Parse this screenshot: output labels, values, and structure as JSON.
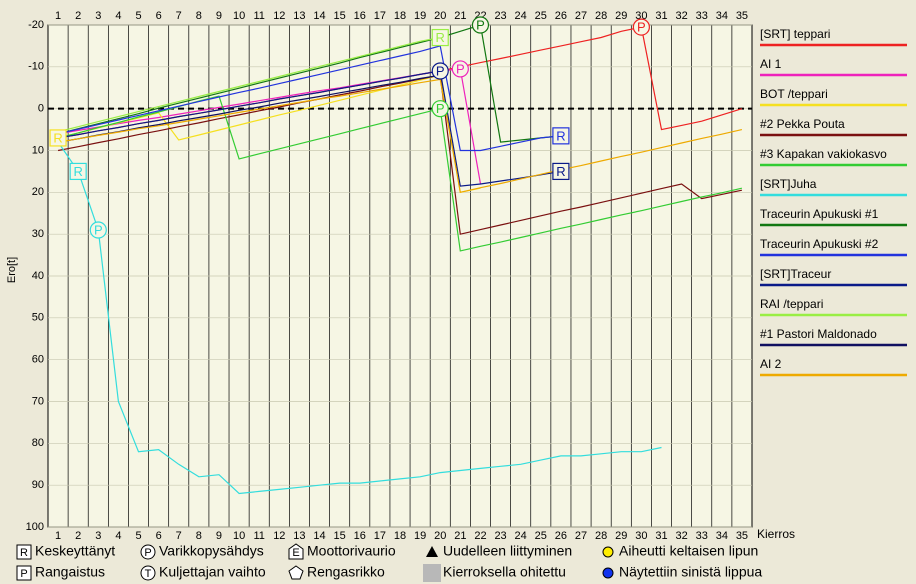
{
  "chart_data": {
    "type": "line",
    "y_label": "Ero[t]",
    "x_label": "Kierros",
    "x": [
      1,
      2,
      3,
      4,
      5,
      6,
      7,
      8,
      9,
      10,
      11,
      12,
      13,
      14,
      15,
      16,
      17,
      18,
      19,
      20,
      21,
      22,
      23,
      24,
      25,
      26,
      27,
      28,
      29,
      30,
      31,
      32,
      33,
      34,
      35
    ],
    "xlim": [
      0.5,
      35.5
    ],
    "xticks": [
      1,
      2,
      3,
      4,
      5,
      6,
      7,
      8,
      9,
      10,
      11,
      12,
      13,
      14,
      15,
      16,
      17,
      18,
      19,
      20,
      21,
      22,
      23,
      24,
      25,
      26,
      27,
      28,
      29,
      30,
      31,
      32,
      33,
      34,
      35
    ],
    "ylim": [
      -20,
      100
    ],
    "inverted": true,
    "yticks": [
      -20,
      -10,
      0,
      10,
      20,
      30,
      40,
      50,
      60,
      70,
      80,
      90,
      100
    ],
    "zero_line": true,
    "grid": true,
    "series": [
      {
        "name": "[SRT] teppari",
        "color": "#ee2222",
        "values": [
          7,
          6.2,
          5.3,
          4.5,
          3.6,
          2.8,
          1.9,
          1.1,
          0.3,
          -0.6,
          -1.4,
          -2.3,
          -3.1,
          -3.9,
          -4.8,
          -5.6,
          -6.5,
          -7.3,
          -8.2,
          -9,
          -10,
          -11,
          -12,
          -13,
          -14,
          -15,
          -16,
          -17,
          -18.5,
          -19.5,
          5,
          4,
          3,
          1.5,
          0
        ],
        "events": [
          {
            "x": 30,
            "label": "P"
          }
        ]
      },
      {
        "name": "AI 1",
        "color": "#ee22bb",
        "values": [
          6,
          5.2,
          4.4,
          3.6,
          2.8,
          2.1,
          1.3,
          0.5,
          -0.3,
          -1.1,
          -1.9,
          -2.7,
          -3.5,
          -4.3,
          -5,
          -5.8,
          -6.6,
          -7.4,
          -8.2,
          -9,
          -9.5,
          18,
          null,
          null,
          null,
          null,
          null,
          null,
          null,
          null,
          null,
          null,
          null,
          null,
          null
        ],
        "events": [
          {
            "x": 21,
            "label": "P"
          }
        ]
      },
      {
        "name": "BOT /teppari",
        "color": "#f5e020",
        "values": [
          7,
          5.8,
          4.6,
          3.4,
          2.2,
          1,
          7.5,
          6.3,
          5.1,
          3.9,
          2.7,
          1.5,
          0.4,
          -0.8,
          -2,
          -3.2,
          -4.4,
          -5.6,
          -6.8,
          -8,
          20,
          19,
          null,
          null,
          null,
          null,
          null,
          null,
          null,
          null,
          null,
          null,
          null,
          null,
          null
        ],
        "events": [
          {
            "x": 1,
            "label": "R"
          }
        ]
      },
      {
        "name": "#2 Pekka Pouta",
        "color": "#7a1010",
        "values": [
          10,
          9.1,
          8.1,
          7.2,
          6.2,
          5.3,
          4.3,
          3.4,
          2.4,
          1.5,
          0.5,
          -0.4,
          -1.4,
          -2.3,
          -3.3,
          -4.2,
          -5.2,
          -6.1,
          -7.1,
          -8,
          30,
          28.9,
          27.8,
          26.7,
          25.6,
          24.5,
          23.5,
          22.4,
          21.3,
          20.2,
          19.1,
          18,
          21.5,
          20.5,
          19.5
        ],
        "events": []
      },
      {
        "name": "#3 Kapakan vakiokasvo",
        "color": "#33cc33",
        "values": [
          7,
          5.8,
          4.5,
          3.3,
          2,
          0.8,
          -0.5,
          -1.8,
          -3,
          12,
          10.8,
          9.6,
          8.4,
          7.2,
          6,
          4.8,
          3.6,
          2.4,
          1.2,
          0,
          34,
          32.9,
          31.9,
          30.8,
          29.7,
          28.6,
          27.6,
          26.5,
          25.4,
          24.4,
          23.3,
          22.2,
          21.1,
          20.1,
          19
        ],
        "events": [
          {
            "x": 20,
            "label": "P"
          }
        ]
      },
      {
        "name": "[SRT]Juha",
        "color": "#33dddd",
        "values": [
          8,
          15,
          29,
          70,
          82,
          81.5,
          85,
          88,
          87.5,
          92,
          91.5,
          91,
          90.5,
          90,
          89.5,
          89.5,
          89,
          88.5,
          88,
          87,
          86.5,
          86,
          85.5,
          85,
          84,
          83,
          83,
          82.5,
          82,
          82,
          81,
          null,
          null,
          null,
          null
        ],
        "events": [
          {
            "x": 2,
            "label": "R"
          },
          {
            "x": 3,
            "label": "P"
          }
        ]
      },
      {
        "name": "Traceurin Apukuski #1",
        "color": "#117711",
        "values": [
          6,
          4.8,
          3.6,
          2.4,
          1.2,
          -0.1,
          -1.3,
          -2.5,
          -3.7,
          -4.9,
          -6.1,
          -7.3,
          -8.5,
          -9.7,
          -10.9,
          -12.2,
          -13.4,
          -14.6,
          -15.8,
          -17,
          -18.5,
          -20,
          8,
          7.5,
          7,
          6.5,
          null,
          null,
          null,
          null,
          null,
          null,
          null,
          null,
          null
        ],
        "events": [
          {
            "x": 22,
            "label": "P"
          }
        ]
      },
      {
        "name": "Traceurin Apukuski #2",
        "color": "#2233dd",
        "values": [
          6,
          4.9,
          3.8,
          2.7,
          1.6,
          0.5,
          -0.6,
          -1.7,
          -2.8,
          -3.9,
          -4.9,
          -6,
          -7.1,
          -8.2,
          -9.3,
          -10.4,
          -11.5,
          -12.6,
          -13.7,
          -15,
          10,
          10,
          9,
          8,
          7,
          6.5,
          null,
          null,
          null,
          null,
          null,
          null,
          null,
          null,
          null
        ],
        "events": [
          {
            "x": 26,
            "label": "R"
          }
        ]
      },
      {
        "name": "[SRT]Traceur",
        "color": "#0a1a88",
        "values": [
          7,
          6.2,
          5.3,
          4.5,
          3.6,
          2.8,
          1.9,
          1.1,
          0.3,
          -0.6,
          -1.4,
          -2.3,
          -3.1,
          -3.9,
          -4.8,
          -5.6,
          -6.5,
          -7.3,
          -8.2,
          -9,
          18.5,
          18,
          17.3,
          16.6,
          15.8,
          15,
          null,
          null,
          null,
          null,
          null,
          null,
          null,
          null,
          null
        ],
        "events": [
          {
            "x": 20,
            "label": "P"
          },
          {
            "x": 26,
            "label": "R"
          }
        ]
      },
      {
        "name": "RAI /teppari",
        "color": "#99ee44",
        "values": [
          5.5,
          4.3,
          3.1,
          1.9,
          0.7,
          -0.5,
          -1.7,
          -2.9,
          -4.1,
          -5.3,
          -6.5,
          -7.7,
          -8.9,
          -10.1,
          -11.3,
          -12.5,
          -13.7,
          -14.9,
          -16.1,
          -17,
          null,
          null,
          null,
          null,
          null,
          null,
          null,
          null,
          null,
          null,
          null,
          null,
          null,
          null,
          null
        ],
        "events": [
          {
            "x": 20,
            "label": "R"
          }
        ]
      },
      {
        "name": "#1 Pastori Maldonado",
        "color": "#101060",
        "values": [
          8,
          7.2,
          6.3,
          5.5,
          4.6,
          3.8,
          2.9,
          2.1,
          1.3,
          0.4,
          -0.4,
          -1.3,
          -2.1,
          -2.9,
          -3.8,
          -4.6,
          -5.5,
          -6.3,
          -7.2,
          -8,
          null,
          null,
          null,
          null,
          null,
          null,
          null,
          null,
          null,
          null,
          null,
          null,
          null,
          null,
          null
        ],
        "events": []
      },
      {
        "name": "AI 2",
        "color": "#eeaa00",
        "values": [
          8,
          7.2,
          6.4,
          5.6,
          4.8,
          4.1,
          3.3,
          2.5,
          1.7,
          0.9,
          0.1,
          -0.7,
          -1.5,
          -2.3,
          -3,
          -3.8,
          -4.6,
          -5.4,
          -6.2,
          -7,
          20,
          18.9,
          17.9,
          16.8,
          15.7,
          14.6,
          13.6,
          12.5,
          11.4,
          10.4,
          9.3,
          8.2,
          7.1,
          6.1,
          5
        ],
        "events": []
      }
    ],
    "key": [
      {
        "symbol": "R",
        "label": "Keskeyttänyt"
      },
      {
        "symbol": "P",
        "label": "Varikkopysähdys"
      },
      {
        "symbol": "E",
        "label": "Moottorivaurio"
      },
      {
        "label": "Uudelleen liittyminen"
      },
      {
        "label": "Aiheutti keltaisen lipun"
      },
      {
        "symbol": "P",
        "label": "Rangaistus"
      },
      {
        "symbol": "T",
        "label": "Kuljettajan vaihto"
      },
      {
        "label": "Rengasrikko"
      },
      {
        "label": "Kierroksella ohitettu"
      },
      {
        "label": "Näytettiin sinistä lippua"
      }
    ]
  }
}
